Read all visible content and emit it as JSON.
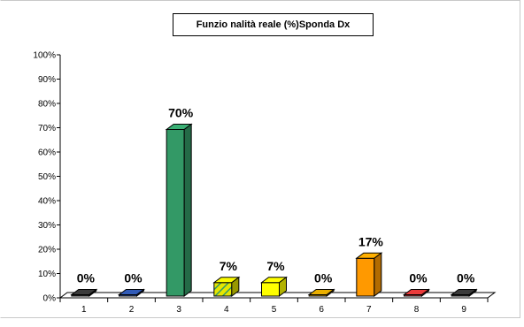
{
  "chart_data": {
    "type": "bar",
    "title": "Funzio nalità reale (%)Sponda Dx",
    "categories": [
      "1",
      "2",
      "3",
      "4",
      "5",
      "6",
      "7",
      "8",
      "9"
    ],
    "values": [
      0,
      0,
      70,
      7,
      7,
      0,
      17,
      0,
      0
    ],
    "data_labels": [
      "0%",
      "0%",
      "70%",
      "7%",
      "7%",
      "0%",
      "17%",
      "0%",
      "0%"
    ],
    "y_ticks": [
      "0%",
      "10%",
      "20%",
      "30%",
      "40%",
      "50%",
      "60%",
      "70%",
      "80%",
      "90%",
      "100%"
    ],
    "ylim": [
      0,
      100
    ],
    "grid": false,
    "legend": "none",
    "bar_colors": [
      "#333333",
      "#2b4fa0",
      "#339966",
      "#d9d900",
      "#ffff00",
      "#cc9900",
      "#ff9900",
      "#cc3333",
      "#333333"
    ],
    "bar_patterns": [
      "solid",
      "solid",
      "solid",
      "hatch",
      "solid",
      "solid",
      "solid",
      "solid",
      "solid"
    ]
  }
}
